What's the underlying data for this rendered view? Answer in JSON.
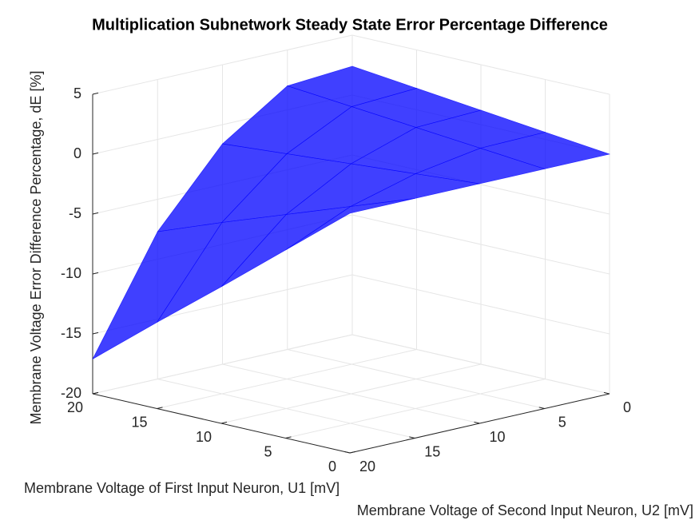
{
  "chart_data": {
    "type": "surface",
    "title": "Multiplication Subnetwork Steady State Error Percentage Difference",
    "xlabel": "Membrane Voltage of First Input Neuron, U1 [mV]",
    "ylabel": "Membrane Voltage of Second Input Neuron, U2 [mV]",
    "zlabel": "Membrane Voltage Error Difference Percentage, dE [%]",
    "x": [
      0,
      5,
      10,
      15,
      20
    ],
    "y": [
      0,
      5,
      10,
      15,
      20
    ],
    "z": [
      [
        0,
        0,
        0,
        0,
        0
      ],
      [
        0.6,
        0.5,
        -0.4,
        -1.9,
        -4.3
      ],
      [
        1.2,
        1.0,
        -0.8,
        -3.8,
        -8.6
      ],
      [
        1.8,
        1.5,
        -1.2,
        -5.7,
        -12.8
      ],
      [
        2.4,
        2.0,
        -1.6,
        -7.7,
        -17.1
      ]
    ],
    "color": "#0000ff",
    "xlim": [
      0,
      20
    ],
    "ylim": [
      0,
      20
    ],
    "zlim": [
      -20,
      5
    ],
    "xticks": [
      0,
      5,
      10,
      15,
      20
    ],
    "yticks": [
      0,
      5,
      10,
      15,
      20
    ],
    "zticks": [
      -20,
      -15,
      -10,
      -5,
      0,
      5
    ],
    "grid": true
  }
}
